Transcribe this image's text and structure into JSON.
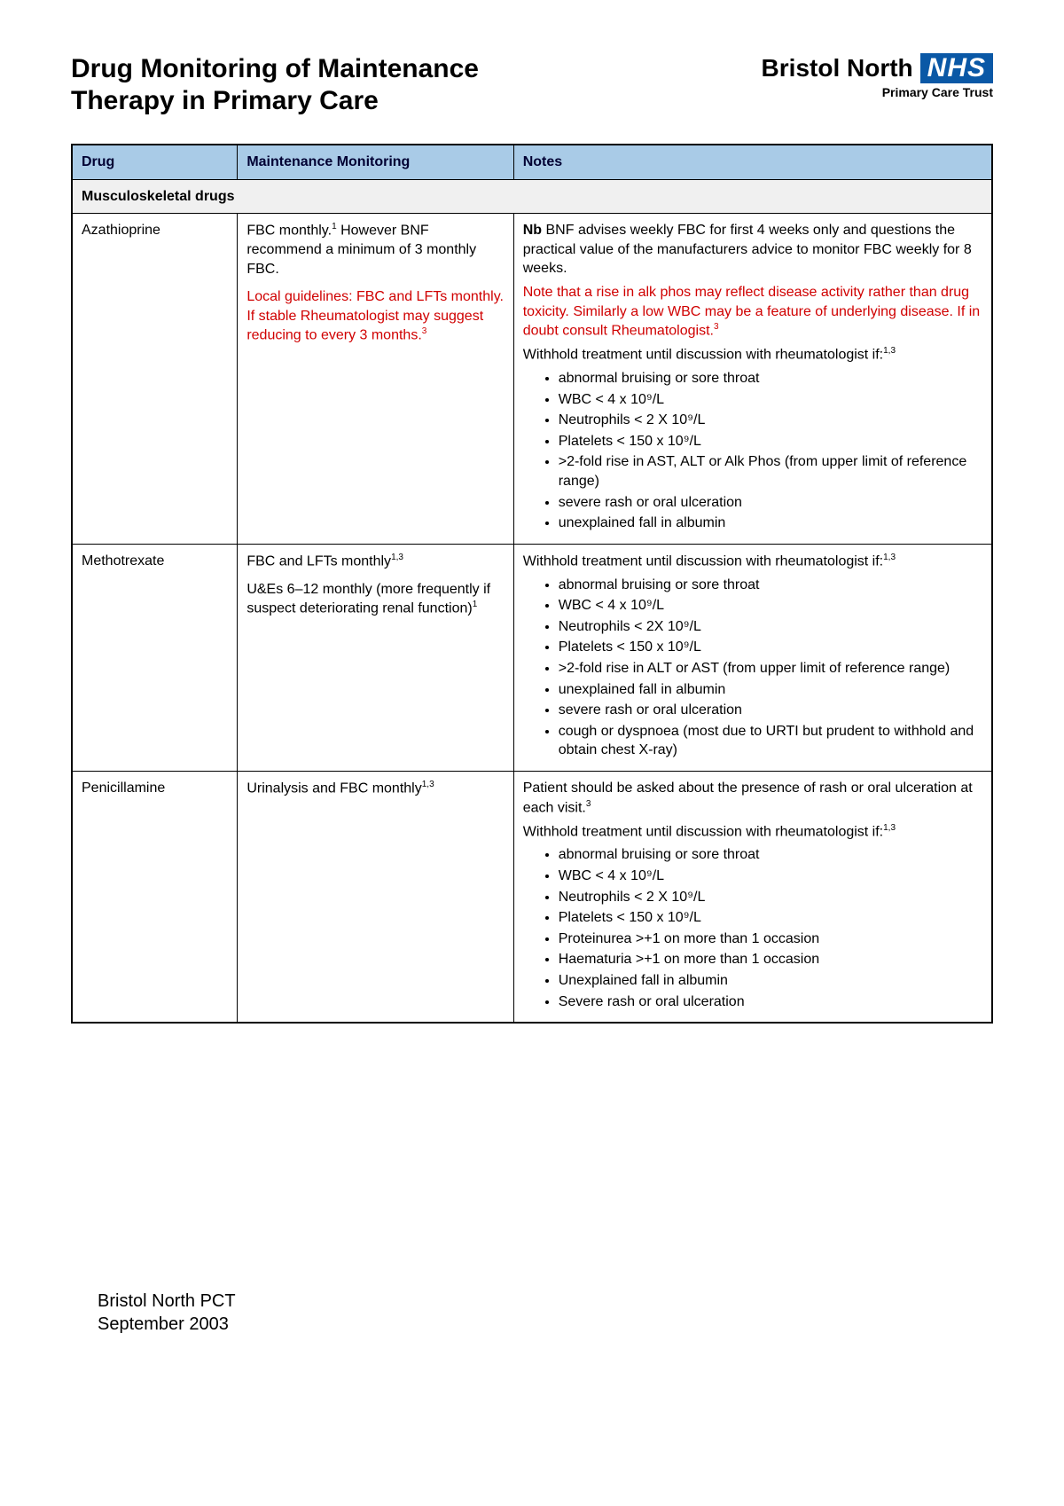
{
  "colors": {
    "header_bg": "#a9cbe7",
    "section_bg": "#f0f0f0",
    "border": "#000000",
    "red_text": "#d00000",
    "nhs_bg": "#0a58a6"
  },
  "title_line1": "Drug Monitoring of Maintenance",
  "title_line2": "Therapy in Primary Care",
  "brand": "Bristol North",
  "nhs": "NHS",
  "brand_sub": "Primary Care Trust",
  "columns": {
    "c1": "Drug",
    "c2": "Maintenance Monitoring",
    "c3": "Notes"
  },
  "section": "Musculoskeletal drugs",
  "rows": {
    "azathioprine": {
      "drug": "Azathioprine",
      "mon1": "FBC monthly.",
      "mon1_sup": "1",
      "mon1b": " However BNF recommend a minimum of 3 monthly FBC.",
      "mon_red": "Local guidelines: FBC and LFTs monthly.  If stable Rheumatologist may suggest reducing to every 3 months.",
      "mon_red_sup": "3",
      "note_nb": "Nb",
      "note_intro": " BNF advises weekly FBC for first 4 weeks only and questions the practical value of the manufacturers advice to monitor FBC weekly for 8 weeks.",
      "note_red": "Note that a rise in alk phos may reflect disease activity rather than drug toxicity. Similarly a low WBC may be a feature of underlying disease. If in doubt consult Rheumatologist.",
      "note_red_sup": "3",
      "withhold": "Withhold treatment until discussion with rheumatologist if:",
      "withhold_sup": "1,3",
      "bullets": [
        "abnormal bruising or sore throat",
        "WBC < 4 x 10⁹/L",
        "Neutrophils < 2 X 10⁹/L",
        "Platelets < 150 x 10⁹/L",
        ">2-fold rise in AST, ALT or Alk Phos (from upper limit of reference range)",
        "severe rash or oral ulceration",
        "unexplained fall in albumin"
      ]
    },
    "methotrexate": {
      "drug": "Methotrexate",
      "mon1": "FBC and LFTs monthly",
      "mon1_sup": "1,3",
      "mon2": "U&Es 6–12 monthly (more frequently if suspect deteriorating renal function)",
      "mon2_sup": "1",
      "withhold": "Withhold treatment until discussion with rheumatologist if:",
      "withhold_sup": "1,3",
      "bullets": [
        "abnormal bruising or sore throat",
        "WBC < 4 x 10⁹/L",
        "Neutrophils < 2X 10⁹/L",
        "Platelets < 150 x 10⁹/L",
        ">2-fold rise in ALT or AST (from upper limit of reference range)",
        "unexplained fall in albumin",
        "severe rash or oral ulceration",
        "cough or dyspnoea (most due to URTI but prudent to withhold  and obtain chest X-ray)"
      ]
    },
    "penicillamine": {
      "drug": "Penicillamine",
      "mon1": "Urinalysis and FBC monthly",
      "mon1_sup": "1,3",
      "note_intro": "Patient should be asked about the presence of rash or oral ulceration at each visit.",
      "note_intro_sup": "3",
      "withhold": "Withhold treatment until discussion with rheumatologist if:",
      "withhold_sup": "1,3",
      "bullets": [
        "abnormal bruising or sore throat",
        "WBC < 4 x 10⁹/L",
        "Neutrophils < 2 X 10⁹/L",
        "Platelets < 150 x 10⁹/L",
        "Proteinurea >+1 on more than 1 occasion",
        "Haematuria >+1 on more than 1 occasion",
        "Unexplained fall in albumin",
        "Severe rash or oral ulceration"
      ]
    }
  },
  "footer_line1": "Bristol North PCT",
  "footer_line2": "September 2003"
}
